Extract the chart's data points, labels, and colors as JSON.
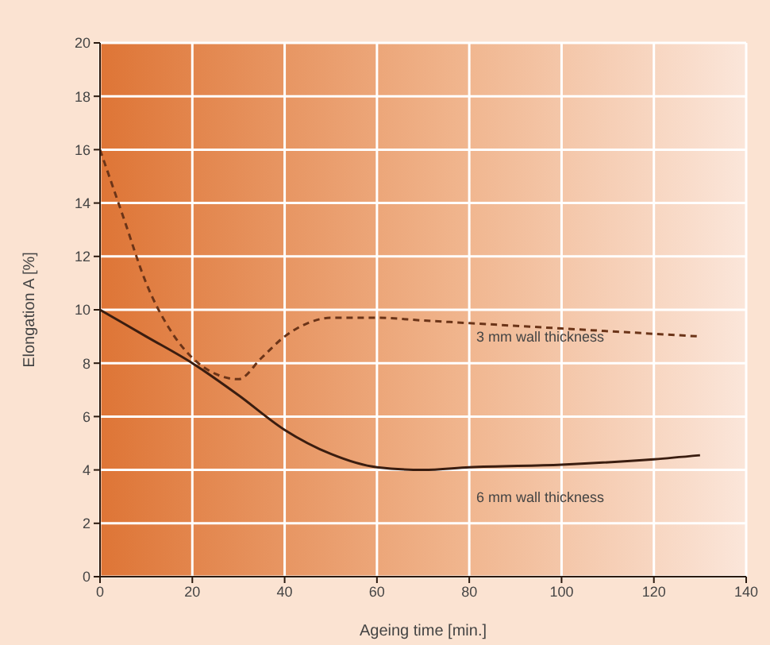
{
  "chart_data": {
    "type": "line",
    "xlabel": "Ageing time [min.]",
    "ylabel": "Elongation A [%]",
    "xlim": [
      0,
      140
    ],
    "xticks": [
      0,
      20,
      40,
      60,
      80,
      100,
      120,
      140
    ],
    "ylim": [
      0,
      20
    ],
    "yticks": [
      0,
      2,
      4,
      6,
      8,
      10,
      12,
      14,
      16,
      18,
      20
    ],
    "grid": true,
    "marker": "none",
    "series": [
      {
        "color": "#6b3418",
        "line_style": "dashed",
        "x": [
          0,
          5,
          10,
          15,
          20,
          25,
          30,
          35,
          40,
          45,
          50,
          60,
          70,
          80,
          100,
          120,
          130
        ],
        "values": [
          16,
          13.5,
          11,
          9.3,
          8.2,
          7.6,
          7.4,
          8.2,
          9,
          9.5,
          9.7,
          9.7,
          9.6,
          9.5,
          9.3,
          9.1,
          9
        ]
      },
      {
        "color": "#3a1d10",
        "line_style": "solid",
        "x": [
          0,
          10,
          20,
          30,
          40,
          50,
          60,
          70,
          80,
          100,
          120,
          130
        ],
        "values": [
          10,
          9,
          8,
          6.8,
          5.5,
          4.6,
          4.1,
          4,
          4.1,
          4.2,
          4.4,
          4.55
        ]
      }
    ],
    "annotations": [
      "3 mm wall thickness",
      "6 mm wall thickness"
    ]
  }
}
